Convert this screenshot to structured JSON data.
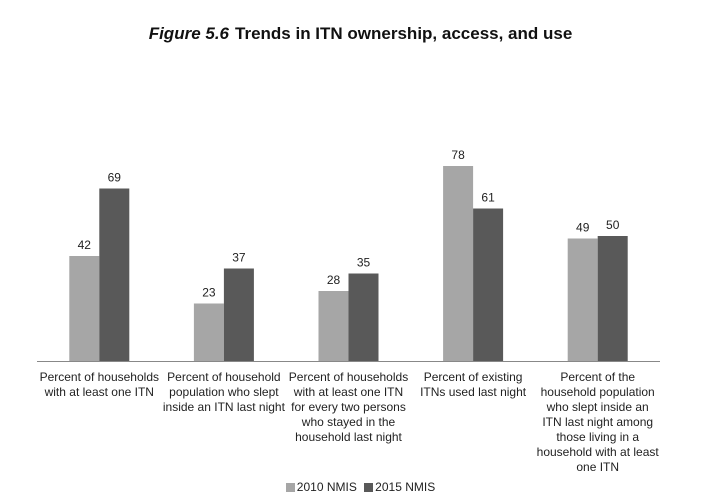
{
  "title": {
    "figure_label": "Figure 5.6",
    "text": "Trends in ITN ownership, access, and use"
  },
  "colors": {
    "series_2010": "#a6a6a6",
    "series_2015": "#595959",
    "axis": "#888888"
  },
  "chart_data": {
    "type": "bar",
    "categories": [
      "Percent of households with at least one ITN",
      "Percent of household population who slept inside an ITN last night",
      "Percent of households with at least one ITN for every two persons who stayed in the household last night",
      "Percent of existing ITNs used last night",
      "Percent of the household population who slept inside an ITN last night among those living in a household with at least one ITN"
    ],
    "series": [
      {
        "name": "2010 NMIS",
        "values": [
          42,
          23,
          28,
          78,
          49
        ]
      },
      {
        "name": "2015 NMIS",
        "values": [
          69,
          37,
          35,
          61,
          50
        ]
      }
    ],
    "ylim": [
      0,
      100
    ],
    "grid": false,
    "legend_position": "bottom-center"
  }
}
